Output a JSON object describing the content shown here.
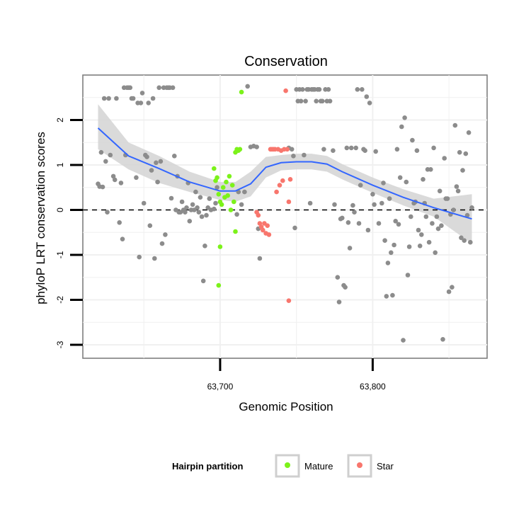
{
  "chart_data": {
    "type": "scatter",
    "title": "Conservation",
    "xlabel": "Genomic Position",
    "ylabel": "phyloP LRT conservation scores",
    "xlim": [
      63610,
      63875
    ],
    "ylim": [
      -3.3,
      3.0
    ],
    "x_ticks": [
      63700,
      63800
    ],
    "x_tick_labels": [
      "63,700",
      "63,800"
    ],
    "y_ticks": [
      -3,
      -2,
      -1,
      0,
      1,
      2
    ],
    "y_tick_labels": [
      "-3",
      "-2",
      "-1",
      "0",
      "1",
      "2"
    ],
    "grid": true,
    "reference_line": {
      "y": 0,
      "style": "dashed"
    },
    "legend": {
      "title": "Hairpin partition",
      "position": "bottom",
      "entries": [
        {
          "label": "Mature",
          "color": "#7cf21a"
        },
        {
          "label": "Star",
          "color": "#f8766d"
        }
      ]
    },
    "colors": {
      "other": "#8c8c8c",
      "mature": "#7cf21a",
      "star": "#f8766d",
      "smooth_line": "#3366ff",
      "ribbon": "#d3d3d3"
    },
    "series": [
      {
        "group": "other",
        "points": [
          [
            63620,
            0.58
          ],
          [
            63621,
            0.52
          ],
          [
            63622,
            1.28
          ],
          [
            63623,
            0.51
          ],
          [
            63624,
            2.48
          ],
          [
            63625,
            1.08
          ],
          [
            63626,
            -0.05
          ],
          [
            63627,
            2.48
          ],
          [
            63628,
            1.22
          ],
          [
            63630,
            0.75
          ],
          [
            63631,
            0.67
          ],
          [
            63632,
            2.48
          ],
          [
            63634,
            -0.28
          ],
          [
            63635,
            0.6
          ],
          [
            63636,
            -0.65
          ],
          [
            63637,
            2.72
          ],
          [
            63638,
            1.22
          ],
          [
            63639,
            2.72
          ],
          [
            63640,
            2.72
          ],
          [
            63641,
            2.72
          ],
          [
            63642,
            2.48
          ],
          [
            63643,
            2.48
          ],
          [
            63645,
            0.72
          ],
          [
            63646,
            2.38
          ],
          [
            63647,
            -1.05
          ],
          [
            63648,
            2.38
          ],
          [
            63649,
            2.6
          ],
          [
            63650,
            0.15
          ],
          [
            63651,
            1.22
          ],
          [
            63652,
            1.18
          ],
          [
            63653,
            2.38
          ],
          [
            63654,
            -0.35
          ],
          [
            63655,
            0.88
          ],
          [
            63656,
            2.48
          ],
          [
            63657,
            -1.08
          ],
          [
            63658,
            1.05
          ],
          [
            63659,
            0.62
          ],
          [
            63660,
            2.72
          ],
          [
            63661,
            1.08
          ],
          [
            63662,
            -0.75
          ],
          [
            63663,
            2.72
          ],
          [
            63664,
            -0.55
          ],
          [
            63665,
            2.72
          ],
          [
            63666,
            2.72
          ],
          [
            63667,
            2.72
          ],
          [
            63668,
            0.26
          ],
          [
            63669,
            2.72
          ],
          [
            63670,
            1.2
          ],
          [
            63671,
            0.0
          ],
          [
            63672,
            0.75
          ],
          [
            63673,
            -0.05
          ],
          [
            63674,
            -0.05
          ],
          [
            63675,
            0.18
          ],
          [
            63676,
            0.0
          ],
          [
            63677,
            -0.05
          ],
          [
            63678,
            0.05
          ],
          [
            63679,
            0.6
          ],
          [
            63680,
            -0.25
          ],
          [
            63681,
            0.0
          ],
          [
            63682,
            0.12
          ],
          [
            63683,
            0.0
          ],
          [
            63684,
            0.4
          ],
          [
            63685,
            0.05
          ],
          [
            63686,
            -0.05
          ],
          [
            63687,
            0.28
          ],
          [
            63688,
            -0.15
          ],
          [
            63689,
            -1.58
          ],
          [
            63690,
            -0.8
          ],
          [
            63691,
            -0.12
          ],
          [
            63692,
            0.05
          ],
          [
            63693,
            0.25
          ],
          [
            63694,
            0.0
          ],
          [
            63696,
            0.02
          ],
          [
            63697,
            0.15
          ],
          [
            63698,
            0.5
          ],
          [
            63711,
            -0.1
          ],
          [
            63712,
            0.4
          ],
          [
            63714,
            0.12
          ],
          [
            63716,
            0.4
          ],
          [
            63718,
            2.75
          ],
          [
            63720,
            1.4
          ],
          [
            63722,
            1.42
          ],
          [
            63724,
            1.4
          ],
          [
            63725,
            -0.42
          ],
          [
            63726,
            -1.08
          ],
          [
            63745,
            1.38
          ],
          [
            63747,
            1.35
          ],
          [
            63748,
            1.2
          ],
          [
            63749,
            -0.4
          ],
          [
            63750,
            2.68
          ],
          [
            63751,
            2.42
          ],
          [
            63752,
            2.68
          ],
          [
            63753,
            2.42
          ],
          [
            63754,
            2.68
          ],
          [
            63755,
            1.22
          ],
          [
            63756,
            2.42
          ],
          [
            63757,
            2.68
          ],
          [
            63758,
            2.68
          ],
          [
            63759,
            0.15
          ],
          [
            63760,
            2.68
          ],
          [
            63761,
            2.68
          ],
          [
            63762,
            2.68
          ],
          [
            63763,
            2.42
          ],
          [
            63764,
            2.68
          ],
          [
            63765,
            2.68
          ],
          [
            63766,
            2.42
          ],
          [
            63767,
            2.42
          ],
          [
            63768,
            1.35
          ],
          [
            63769,
            2.68
          ],
          [
            63770,
            2.42
          ],
          [
            63771,
            2.68
          ],
          [
            63772,
            2.42
          ],
          [
            63774,
            1.32
          ],
          [
            63775,
            0.12
          ],
          [
            63777,
            -1.5
          ],
          [
            63778,
            -2.05
          ],
          [
            63779,
            -0.2
          ],
          [
            63780,
            -0.18
          ],
          [
            63781,
            -1.68
          ],
          [
            63782,
            -1.72
          ],
          [
            63783,
            1.38
          ],
          [
            63784,
            -0.28
          ],
          [
            63785,
            -0.85
          ],
          [
            63786,
            1.38
          ],
          [
            63787,
            0.1
          ],
          [
            63788,
            -0.05
          ],
          [
            63789,
            1.38
          ],
          [
            63790,
            2.68
          ],
          [
            63791,
            -0.3
          ],
          [
            63792,
            0.55
          ],
          [
            63793,
            2.68
          ],
          [
            63794,
            1.35
          ],
          [
            63795,
            1.32
          ],
          [
            63796,
            2.52
          ],
          [
            63797,
            -0.45
          ],
          [
            63798,
            2.38
          ],
          [
            63800,
            0.35
          ],
          [
            63801,
            0.12
          ],
          [
            63802,
            1.3
          ],
          [
            63804,
            -0.3
          ],
          [
            63806,
            0.15
          ],
          [
            63807,
            0.6
          ],
          [
            63808,
            -0.68
          ],
          [
            63809,
            -1.92
          ],
          [
            63810,
            -1.18
          ],
          [
            63811,
            0.25
          ],
          [
            63812,
            -0.95
          ],
          [
            63813,
            -1.9
          ],
          [
            63814,
            -0.78
          ],
          [
            63815,
            -0.25
          ],
          [
            63816,
            1.35
          ],
          [
            63817,
            -0.32
          ],
          [
            63818,
            0.72
          ],
          [
            63819,
            1.85
          ],
          [
            63820,
            -2.9
          ],
          [
            63821,
            2.05
          ],
          [
            63822,
            0.62
          ],
          [
            63823,
            -1.45
          ],
          [
            63824,
            -0.82
          ],
          [
            63825,
            -0.15
          ],
          [
            63826,
            1.55
          ],
          [
            63827,
            0.15
          ],
          [
            63828,
            0.18
          ],
          [
            63829,
            1.32
          ],
          [
            63830,
            -0.45
          ],
          [
            63831,
            -0.8
          ],
          [
            63832,
            -0.55
          ],
          [
            63833,
            0.68
          ],
          [
            63834,
            0.15
          ],
          [
            63835,
            -0.15
          ],
          [
            63836,
            0.9
          ],
          [
            63837,
            -0.72
          ],
          [
            63838,
            0.9
          ],
          [
            63839,
            -0.3
          ],
          [
            63840,
            1.38
          ],
          [
            63841,
            -0.95
          ],
          [
            63842,
            -0.15
          ],
          [
            63843,
            -0.42
          ],
          [
            63844,
            0.42
          ],
          [
            63845,
            -0.35
          ],
          [
            63846,
            -2.88
          ],
          [
            63847,
            1.15
          ],
          [
            63848,
            0.25
          ],
          [
            63849,
            0.25
          ],
          [
            63850,
            -1.82
          ],
          [
            63851,
            -0.1
          ],
          [
            63852,
            -1.72
          ],
          [
            63853,
            0.0
          ],
          [
            63854,
            1.88
          ],
          [
            63855,
            0.52
          ],
          [
            63856,
            0.42
          ],
          [
            63857,
            1.28
          ],
          [
            63858,
            -0.62
          ],
          [
            63859,
            0.88
          ],
          [
            63860,
            -0.68
          ],
          [
            63861,
            1.25
          ],
          [
            63862,
            -0.12
          ],
          [
            63863,
            1.72
          ],
          [
            63864,
            -0.72
          ],
          [
            63865,
            0.05
          ]
        ]
      },
      {
        "group": "mature",
        "points": [
          [
            63696,
            0.92
          ],
          [
            63697,
            0.65
          ],
          [
            63698,
            0.72
          ],
          [
            63699,
            0.35
          ],
          [
            63699,
            -1.68
          ],
          [
            63700,
            0.18
          ],
          [
            63700,
            -0.82
          ],
          [
            63701,
            0.12
          ],
          [
            63702,
            0.5
          ],
          [
            63703,
            0.28
          ],
          [
            63704,
            0.62
          ],
          [
            63705,
            0.32
          ],
          [
            63706,
            0.75
          ],
          [
            63707,
            0.0
          ],
          [
            63708,
            0.55
          ],
          [
            63709,
            0.18
          ],
          [
            63710,
            1.28
          ],
          [
            63710,
            -0.48
          ],
          [
            63711,
            1.35
          ],
          [
            63712,
            1.32
          ],
          [
            63713,
            1.35
          ],
          [
            63714,
            2.62
          ]
        ]
      },
      {
        "group": "star",
        "points": [
          [
            63724,
            -0.05
          ],
          [
            63725,
            -0.12
          ],
          [
            63726,
            -0.3
          ],
          [
            63727,
            -0.38
          ],
          [
            63728,
            -0.45
          ],
          [
            63729,
            -0.3
          ],
          [
            63730,
            -0.52
          ],
          [
            63731,
            -0.35
          ],
          [
            63732,
            -0.55
          ],
          [
            63733,
            1.35
          ],
          [
            63734,
            1.35
          ],
          [
            63735,
            1.35
          ],
          [
            63736,
            1.35
          ],
          [
            63737,
            0.4
          ],
          [
            63738,
            1.35
          ],
          [
            63739,
            0.55
          ],
          [
            63740,
            1.32
          ],
          [
            63741,
            0.65
          ],
          [
            63742,
            1.35
          ],
          [
            63743,
            2.65
          ],
          [
            63744,
            1.35
          ],
          [
            63745,
            0.18
          ],
          [
            63745,
            -2.02
          ],
          [
            63746,
            0.68
          ]
        ]
      }
    ],
    "smooth": {
      "x": [
        63620,
        63640,
        63660,
        63680,
        63700,
        63710,
        63720,
        63730,
        63740,
        63750,
        63760,
        63770,
        63780,
        63800,
        63820,
        63840,
        63865
      ],
      "y": [
        1.82,
        1.2,
        0.92,
        0.62,
        0.42,
        0.42,
        0.58,
        0.95,
        1.05,
        1.07,
        1.07,
        1.02,
        0.85,
        0.55,
        0.28,
        0.05,
        -0.2
      ],
      "ymin": [
        1.35,
        0.9,
        0.6,
        0.4,
        0.22,
        0.18,
        0.3,
        0.72,
        0.88,
        0.9,
        0.9,
        0.85,
        0.68,
        0.38,
        0.1,
        -0.15,
        -0.75
      ],
      "ymax": [
        2.35,
        1.5,
        1.2,
        0.85,
        0.62,
        0.62,
        0.85,
        1.18,
        1.22,
        1.25,
        1.25,
        1.2,
        1.02,
        0.72,
        0.46,
        0.25,
        0.35
      ]
    }
  }
}
